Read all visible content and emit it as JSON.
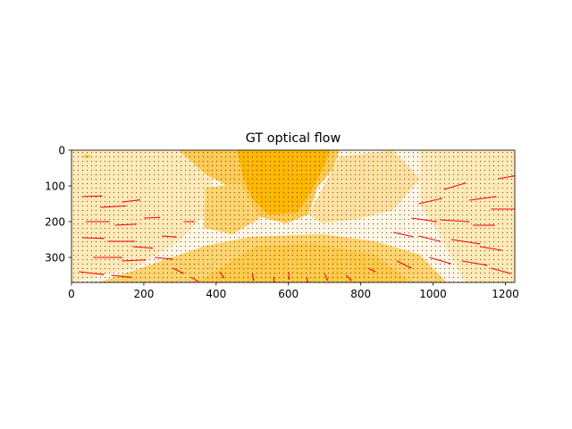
{
  "chart_data": {
    "type": "heatmap",
    "title": "GT optical flow",
    "xlabel": "",
    "ylabel": "",
    "image_width": 1226,
    "image_height": 370,
    "xlim": [
      0,
      1226
    ],
    "ylim": [
      370,
      0
    ],
    "y_inverted": true,
    "x_ticks": [
      0,
      200,
      400,
      600,
      800,
      1000,
      1200
    ],
    "x_tick_labels": [
      "0",
      "200",
      "400",
      "600",
      "800",
      "1000",
      "1200"
    ],
    "y_ticks": [
      0,
      100,
      200,
      300
    ],
    "y_tick_labels": [
      "0",
      "100",
      "200",
      "300"
    ],
    "grid": false,
    "legend": "none",
    "background_image": "optical-flow magnitude map rendered in orange/amber tones",
    "overlay": "quiver field of flow vectors",
    "colors": {
      "image_dark": "#ffb703",
      "image_mid": "#ffc94a",
      "image_light": "#ffe9b8",
      "image_pale": "#fff6e6",
      "vector_small": "#3a1e00",
      "vector_large": "#ff0000"
    },
    "vectors": [
      {
        "x": 30,
        "y": 130,
        "u": 55,
        "v": -2
      },
      {
        "x": 80,
        "y": 160,
        "u": 70,
        "v": -4
      },
      {
        "x": 140,
        "y": 145,
        "u": 50,
        "v": -6
      },
      {
        "x": 40,
        "y": 200,
        "u": 65,
        "v": 0
      },
      {
        "x": 120,
        "y": 210,
        "u": 60,
        "v": -3
      },
      {
        "x": 200,
        "y": 190,
        "u": 45,
        "v": -2
      },
      {
        "x": 30,
        "y": 245,
        "u": 60,
        "v": 2
      },
      {
        "x": 100,
        "y": 255,
        "u": 75,
        "v": 0
      },
      {
        "x": 170,
        "y": 270,
        "u": 55,
        "v": 4
      },
      {
        "x": 60,
        "y": 300,
        "u": 80,
        "v": 0
      },
      {
        "x": 140,
        "y": 310,
        "u": 65,
        "v": -3
      },
      {
        "x": 230,
        "y": 300,
        "u": 50,
        "v": 5
      },
      {
        "x": 20,
        "y": 340,
        "u": 70,
        "v": 8
      },
      {
        "x": 110,
        "y": 350,
        "u": 55,
        "v": 6
      },
      {
        "x": 250,
        "y": 240,
        "u": 40,
        "v": 3
      },
      {
        "x": 310,
        "y": 200,
        "u": 30,
        "v": 0
      },
      {
        "x": 280,
        "y": 330,
        "u": 30,
        "v": 15
      },
      {
        "x": 330,
        "y": 355,
        "u": 20,
        "v": 12
      },
      {
        "x": 410,
        "y": 340,
        "u": 12,
        "v": 18
      },
      {
        "x": 500,
        "y": 345,
        "u": 4,
        "v": 20
      },
      {
        "x": 560,
        "y": 355,
        "u": 0,
        "v": 18
      },
      {
        "x": 600,
        "y": 340,
        "u": 2,
        "v": 22
      },
      {
        "x": 650,
        "y": 355,
        "u": 4,
        "v": 16
      },
      {
        "x": 700,
        "y": 345,
        "u": 8,
        "v": 20
      },
      {
        "x": 760,
        "y": 350,
        "u": 14,
        "v": 15
      },
      {
        "x": 820,
        "y": 330,
        "u": 20,
        "v": 10
      },
      {
        "x": 890,
        "y": 230,
        "u": 55,
        "v": 12
      },
      {
        "x": 960,
        "y": 150,
        "u": 65,
        "v": -15
      },
      {
        "x": 1030,
        "y": 110,
        "u": 60,
        "v": -18
      },
      {
        "x": 1100,
        "y": 140,
        "u": 75,
        "v": -10
      },
      {
        "x": 1180,
        "y": 80,
        "u": 45,
        "v": -8
      },
      {
        "x": 940,
        "y": 190,
        "u": 70,
        "v": 10
      },
      {
        "x": 1020,
        "y": 195,
        "u": 80,
        "v": 5
      },
      {
        "x": 1110,
        "y": 210,
        "u": 60,
        "v": 0
      },
      {
        "x": 1160,
        "y": 165,
        "u": 70,
        "v": 0
      },
      {
        "x": 960,
        "y": 240,
        "u": 60,
        "v": 15
      },
      {
        "x": 1050,
        "y": 250,
        "u": 80,
        "v": 12
      },
      {
        "x": 1130,
        "y": 270,
        "u": 60,
        "v": 10
      },
      {
        "x": 990,
        "y": 300,
        "u": 60,
        "v": 18
      },
      {
        "x": 1080,
        "y": 310,
        "u": 70,
        "v": 12
      },
      {
        "x": 1160,
        "y": 330,
        "u": 55,
        "v": 15
      },
      {
        "x": 900,
        "y": 310,
        "u": 40,
        "v": 20
      }
    ]
  }
}
